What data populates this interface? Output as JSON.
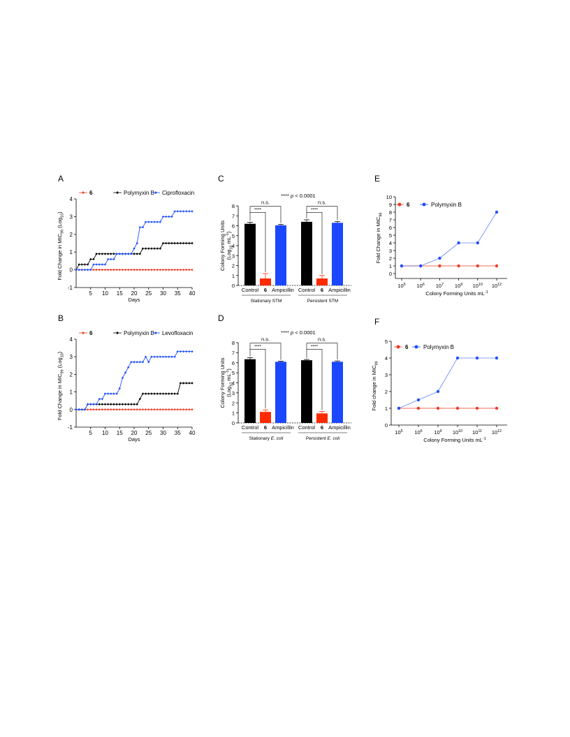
{
  "colors": {
    "red": "#ef3b24",
    "blue": "#1f4fff",
    "black": "#000000",
    "bar_black": "#000000",
    "bar_red": "#ff2a00",
    "bar_blue": "#1a47ff"
  },
  "chart_data": [
    {
      "panel": "A",
      "type": "line",
      "ylabel": "Fold Change in MIC99 (Log10)",
      "xlabel": "Days",
      "xlim": [
        0,
        40
      ],
      "ylim": [
        -1,
        4
      ],
      "xticks": [
        5,
        10,
        15,
        20,
        25,
        30,
        35,
        40
      ],
      "yticks": [
        -1,
        0,
        1,
        2,
        3,
        4
      ],
      "series": [
        {
          "name": "6",
          "color": "red",
          "points": [
            [
              0,
              0
            ],
            [
              40,
              0
            ]
          ]
        },
        {
          "name": "Polymyxin B",
          "color": "black",
          "points": [
            [
              0,
              0
            ],
            [
              1,
              0.3
            ],
            [
              4,
              0.3
            ],
            [
              5,
              0.6
            ],
            [
              6,
              0.6
            ],
            [
              7,
              0.9
            ],
            [
              22,
              0.9
            ],
            [
              23,
              1.2
            ],
            [
              29,
              1.2
            ],
            [
              30,
              1.5
            ],
            [
              40,
              1.5
            ]
          ]
        },
        {
          "name": "Ciprofloxacin",
          "color": "blue",
          "points": [
            [
              0,
              0
            ],
            [
              5,
              0
            ],
            [
              6,
              0.3
            ],
            [
              10,
              0.3
            ],
            [
              11,
              0.6
            ],
            [
              13,
              0.6
            ],
            [
              14,
              0.9
            ],
            [
              19,
              0.9
            ],
            [
              20,
              1.2
            ],
            [
              21,
              1.5
            ],
            [
              22,
              2.4
            ],
            [
              23,
              2.4
            ],
            [
              24,
              2.7
            ],
            [
              29,
              2.7
            ],
            [
              30,
              3.0
            ],
            [
              33,
              3.0
            ],
            [
              34,
              3.3
            ],
            [
              40,
              3.3
            ]
          ]
        }
      ]
    },
    {
      "panel": "B",
      "type": "line",
      "ylabel": "Fold Change in MIC99 (Log10)",
      "xlabel": "Days",
      "xlim": [
        0,
        40
      ],
      "ylim": [
        -1,
        4
      ],
      "xticks": [
        5,
        10,
        15,
        20,
        25,
        30,
        35,
        40
      ],
      "yticks": [
        -1,
        0,
        1,
        2,
        3,
        4
      ],
      "series": [
        {
          "name": "6",
          "color": "red",
          "points": [
            [
              0,
              0
            ],
            [
              40,
              0
            ]
          ]
        },
        {
          "name": "Polymyxin B",
          "color": "black",
          "points": [
            [
              0,
              0
            ],
            [
              3,
              0
            ],
            [
              4,
              0.3
            ],
            [
              21,
              0.3
            ],
            [
              22,
              0.6
            ],
            [
              23,
              0.9
            ],
            [
              35,
              0.9
            ],
            [
              36,
              1.5
            ],
            [
              40,
              1.5
            ]
          ]
        },
        {
          "name": "Levofloxacin",
          "color": "blue",
          "points": [
            [
              0,
              0
            ],
            [
              3,
              0
            ],
            [
              4,
              0.3
            ],
            [
              7,
              0.3
            ],
            [
              8,
              0.6
            ],
            [
              9,
              0.6
            ],
            [
              10,
              0.9
            ],
            [
              14,
              0.9
            ],
            [
              15,
              1.2
            ],
            [
              16,
              1.8
            ],
            [
              17,
              2.1
            ],
            [
              18,
              2.4
            ],
            [
              19,
              2.7
            ],
            [
              23,
              2.7
            ],
            [
              24,
              3.0
            ],
            [
              25,
              2.7
            ],
            [
              26,
              3.0
            ],
            [
              34,
              3.0
            ],
            [
              35,
              3.3
            ],
            [
              40,
              3.3
            ]
          ]
        }
      ]
    },
    {
      "panel": "C",
      "type": "bar",
      "ylabel": "Colony Forming Units (Log10 mL-1)",
      "ylim": [
        0,
        8
      ],
      "yticks": [
        0,
        1,
        2,
        3,
        4,
        5,
        6,
        7,
        8
      ],
      "significance": "**** p < 0.0001",
      "groups": [
        {
          "label": "Stationary STM",
          "categories": [
            "Control",
            "6",
            "Ampicillin"
          ],
          "values": [
            6.2,
            0.7,
            6.05
          ],
          "errors": [
            0.15,
            0.5,
            0.08
          ],
          "annotations": [
            "****",
            "n.s."
          ]
        },
        {
          "label": "Persistent STM",
          "categories": [
            "Control",
            "6",
            "Ampicillin"
          ],
          "values": [
            6.4,
            0.7,
            6.3
          ],
          "errors": [
            0.2,
            0.3,
            0.12
          ],
          "annotations": [
            "****",
            "n.s."
          ]
        }
      ]
    },
    {
      "panel": "D",
      "type": "bar",
      "ylabel": "Colony Forming Units (Log10 mL-1)",
      "ylim": [
        0,
        8
      ],
      "yticks": [
        0,
        1,
        2,
        3,
        4,
        5,
        6,
        7,
        8
      ],
      "significance": "**** p < 0.0001",
      "groups": [
        {
          "label": "Stationary E. coli",
          "categories": [
            "Control",
            "6",
            "Ampicillin"
          ],
          "values": [
            6.35,
            1.1,
            6.1
          ],
          "errors": [
            0.15,
            0.2,
            0.05
          ],
          "annotations": [
            "****",
            "n.s."
          ]
        },
        {
          "label": "Persistent E. coli",
          "categories": [
            "Control",
            "6",
            "Ampicillin"
          ],
          "values": [
            6.25,
            0.95,
            6.1
          ],
          "errors": [
            0.08,
            0.2,
            0.08
          ],
          "annotations": [
            "****",
            "n.s."
          ]
        }
      ]
    },
    {
      "panel": "E",
      "type": "line",
      "ylabel": "Fold Change in MIC99",
      "xlabel": "Colony Forming Units mL-1",
      "categories": [
        "10^5",
        "10^6",
        "10^7",
        "10^9",
        "10^10",
        "10^12"
      ],
      "ylim": [
        0,
        10
      ],
      "yticks": [
        0,
        1,
        2,
        3,
        4,
        5,
        6,
        7,
        8,
        9,
        10
      ],
      "series": [
        {
          "name": "6",
          "color": "red",
          "values": [
            1,
            1,
            1,
            1,
            1,
            1
          ]
        },
        {
          "name": "Polymyxin B",
          "color": "blue",
          "values": [
            1,
            1,
            2,
            4,
            4,
            8
          ]
        }
      ]
    },
    {
      "panel": "F",
      "type": "line",
      "ylabel": "Fold change in MIC99",
      "xlabel": "Colony Forming Units mL-1",
      "categories": [
        "10^5",
        "10^6",
        "10^9",
        "10^10",
        "10^11",
        "10^12"
      ],
      "ylim": [
        0,
        5
      ],
      "yticks": [
        0,
        1,
        2,
        3,
        4,
        5
      ],
      "series": [
        {
          "name": "6",
          "color": "red",
          "values": [
            1,
            1,
            1,
            1,
            1,
            1
          ]
        },
        {
          "name": "Polymyxin B",
          "color": "blue",
          "values": [
            1,
            1.5,
            2,
            4,
            4,
            4
          ]
        }
      ]
    }
  ]
}
